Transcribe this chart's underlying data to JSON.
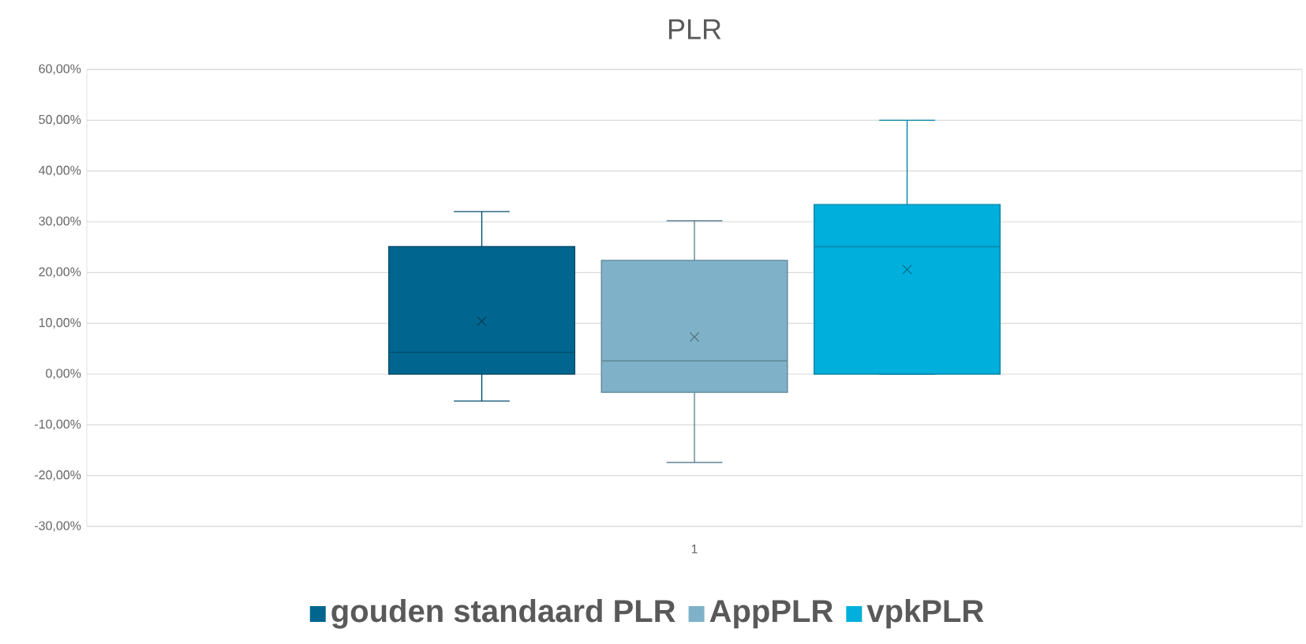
{
  "chart_data": {
    "type": "box",
    "title": "PLR",
    "categories": [
      "1"
    ],
    "series": [
      {
        "name": "gouden standaard PLR",
        "color": "#006690",
        "boxes": [
          {
            "low": -5.3,
            "q1": 0,
            "median": 4.3,
            "q3": 25.1,
            "high": 32.0,
            "mean": 10.4
          }
        ]
      },
      {
        "name": "AppPLR",
        "color": "#7fb2c8",
        "boxes": [
          {
            "low": -17.4,
            "q1": -3.6,
            "median": 2.6,
            "q3": 22.4,
            "high": 30.2,
            "mean": 7.3
          }
        ]
      },
      {
        "name": "vpkPLR",
        "color": "#00afdb",
        "boxes": [
          {
            "low": 0,
            "q1": 0,
            "median": 25.1,
            "q3": 33.4,
            "high": 50.0,
            "mean": 20.6
          }
        ]
      }
    ],
    "ylim": [
      -30,
      60
    ],
    "yticks": [
      {
        "value": -30,
        "label": "-30,00%"
      },
      {
        "value": -20,
        "label": "-20,00%"
      },
      {
        "value": -10,
        "label": "-10,00%"
      },
      {
        "value": 0,
        "label": "0,00%"
      },
      {
        "value": 10,
        "label": "10,00%"
      },
      {
        "value": 20,
        "label": "20,00%"
      },
      {
        "value": 30,
        "label": "30,00%"
      },
      {
        "value": 40,
        "label": "40,00%"
      },
      {
        "value": 50,
        "label": "50,00%"
      },
      {
        "value": 60,
        "label": "60,00%"
      }
    ],
    "grid": "y",
    "legend": "bottom",
    "marker": "cross"
  }
}
